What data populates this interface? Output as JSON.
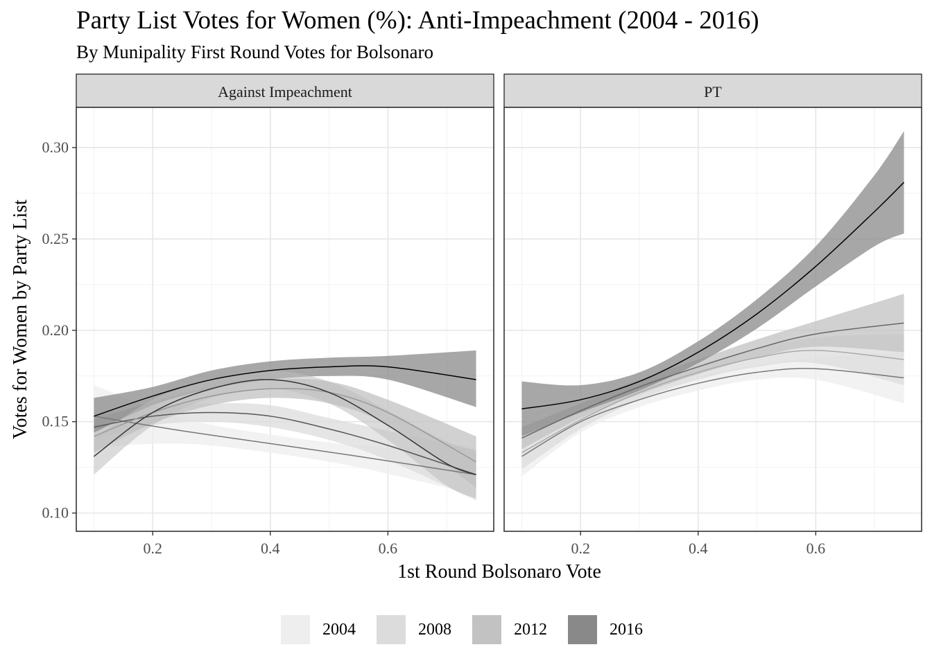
{
  "title": "Party List Votes for Women (%): Anti-Impeachment (2004 - 2016)",
  "subtitle": "By Munipality First Round Votes for Bolsonaro",
  "chart_data": {
    "type": "line",
    "title": "Party List Votes for Women (%): Anti-Impeachment (2004 - 2016)",
    "subtitle": "By Munipality First Round Votes for Bolsonaro",
    "xlabel": "1st Round Bolsonaro Vote",
    "ylabel": "Votes for Women by Party List",
    "xlim": [
      0.07,
      0.78
    ],
    "ylim": [
      0.09,
      0.322
    ],
    "x_ticks": [
      0.2,
      0.4,
      0.6
    ],
    "x_tick_labels": [
      "0.2",
      "0.4",
      "0.6"
    ],
    "y_ticks": [
      0.1,
      0.15,
      0.2,
      0.25,
      0.3
    ],
    "y_tick_labels": [
      "0.10",
      "0.15",
      "0.20",
      "0.25",
      "0.30"
    ],
    "grid": true,
    "legend_position": "bottom",
    "legend": [
      {
        "label": "2004",
        "color": "#eeeeee"
      },
      {
        "label": "2008",
        "color": "#dcdcdc"
      },
      {
        "label": "2012",
        "color": "#c2c2c2"
      },
      {
        "label": "2016",
        "color": "#898989"
      }
    ],
    "panels": [
      {
        "facet": "Against Impeachment",
        "series": [
          {
            "name": "2004",
            "fill": "#eeeeee",
            "line_color": "#777777",
            "x": [
              0.1,
              0.25,
              0.4,
              0.55,
              0.75
            ],
            "y": [
              0.153,
              0.145,
              0.138,
              0.131,
              0.121
            ],
            "lower": [
              0.136,
              0.138,
              0.133,
              0.125,
              0.11
            ],
            "upper": [
              0.17,
              0.152,
              0.143,
              0.137,
              0.132
            ]
          },
          {
            "name": "2008",
            "fill": "#dcdcdc",
            "line_color": "#555555",
            "x": [
              0.1,
              0.2,
              0.3,
              0.4,
              0.5,
              0.6,
              0.75
            ],
            "y": [
              0.147,
              0.153,
              0.155,
              0.153,
              0.146,
              0.137,
              0.121
            ],
            "lower": [
              0.14,
              0.148,
              0.15,
              0.147,
              0.14,
              0.129,
              0.107
            ],
            "upper": [
              0.154,
              0.158,
              0.16,
              0.159,
              0.152,
              0.145,
              0.135
            ]
          },
          {
            "name": "2012",
            "fill": "#c2c2c2",
            "line_color": "#999999",
            "x": [
              0.1,
              0.2,
              0.3,
              0.4,
              0.5,
              0.6,
              0.75
            ],
            "y": [
              0.142,
              0.155,
              0.164,
              0.168,
              0.166,
              0.155,
              0.128
            ],
            "lower": [
              0.133,
              0.149,
              0.159,
              0.163,
              0.16,
              0.148,
              0.114
            ],
            "upper": [
              0.151,
              0.161,
              0.169,
              0.173,
              0.172,
              0.162,
              0.142
            ]
          },
          {
            "name": "2016",
            "fill": "#898989",
            "line_color": "#000000",
            "x": [
              0.1,
              0.2,
              0.3,
              0.4,
              0.5,
              0.6,
              0.75
            ],
            "y": [
              0.153,
              0.164,
              0.173,
              0.178,
              0.18,
              0.18,
              0.173
            ],
            "lower": [
              0.144,
              0.159,
              0.168,
              0.173,
              0.175,
              0.173,
              0.158
            ],
            "upper": [
              0.163,
              0.169,
              0.178,
              0.183,
              0.185,
              0.186,
              0.189
            ]
          },
          {
            "name": "",
            "fill": "none",
            "line_color": "#333333",
            "x": [
              0.1,
              0.2,
              0.3,
              0.4,
              0.5,
              0.6,
              0.7,
              0.75
            ],
            "y": [
              0.131,
              0.155,
              0.168,
              0.173,
              0.166,
              0.148,
              0.127,
              0.121
            ],
            "lower": [
              0.121,
              0.148,
              0.163,
              0.168,
              0.16,
              0.14,
              0.115,
              0.108
            ],
            "upper": [
              0.141,
              0.162,
              0.173,
              0.178,
              0.172,
              0.156,
              0.139,
              0.134
            ]
          }
        ]
      },
      {
        "facet": "PT",
        "series": [
          {
            "name": "2004",
            "fill": "#eeeeee",
            "line_color": "#777777",
            "x": [
              0.1,
              0.2,
              0.3,
              0.4,
              0.5,
              0.6,
              0.75
            ],
            "y": [
              0.131,
              0.15,
              0.162,
              0.171,
              0.177,
              0.179,
              0.174
            ],
            "lower": [
              0.12,
              0.144,
              0.158,
              0.167,
              0.173,
              0.173,
              0.16
            ],
            "upper": [
              0.142,
              0.156,
              0.166,
              0.175,
              0.181,
              0.185,
              0.188
            ]
          },
          {
            "name": "2008",
            "fill": "#dcdcdc",
            "line_color": "#aaaaaa",
            "x": [
              0.1,
              0.2,
              0.3,
              0.4,
              0.5,
              0.6,
              0.75
            ],
            "y": [
              0.133,
              0.151,
              0.166,
              0.177,
              0.185,
              0.189,
              0.184
            ],
            "lower": [
              0.124,
              0.146,
              0.162,
              0.173,
              0.18,
              0.182,
              0.17
            ],
            "upper": [
              0.142,
              0.156,
              0.17,
              0.181,
              0.19,
              0.196,
              0.198
            ]
          },
          {
            "name": "2012",
            "fill": "#c2c2c2",
            "line_color": "#666666",
            "x": [
              0.1,
              0.2,
              0.3,
              0.4,
              0.5,
              0.6,
              0.75
            ],
            "y": [
              0.141,
              0.156,
              0.169,
              0.18,
              0.19,
              0.198,
              0.204
            ],
            "lower": [
              0.135,
              0.152,
              0.165,
              0.176,
              0.185,
              0.191,
              0.188
            ],
            "upper": [
              0.147,
              0.16,
              0.173,
              0.184,
              0.195,
              0.205,
              0.22
            ]
          },
          {
            "name": "2016",
            "fill": "#898989",
            "line_color": "#000000",
            "x": [
              0.1,
              0.2,
              0.3,
              0.4,
              0.5,
              0.6,
              0.7,
              0.75
            ],
            "y": [
              0.157,
              0.162,
              0.172,
              0.188,
              0.209,
              0.235,
              0.265,
              0.281
            ],
            "lower": [
              0.142,
              0.155,
              0.167,
              0.182,
              0.201,
              0.224,
              0.246,
              0.253
            ],
            "upper": [
              0.172,
              0.17,
              0.177,
              0.194,
              0.217,
              0.246,
              0.285,
              0.309
            ]
          }
        ]
      }
    ]
  }
}
